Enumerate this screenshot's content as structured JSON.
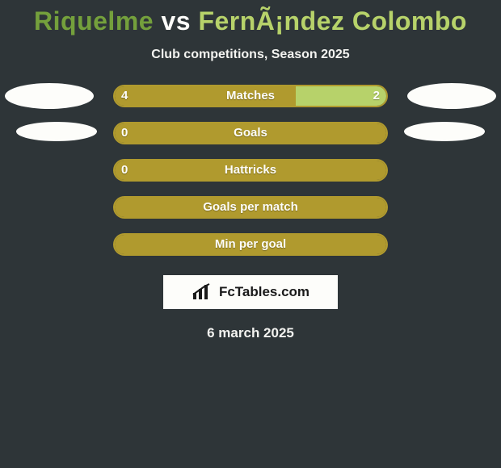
{
  "background_color": "#2e3538",
  "title": {
    "player1": "Riquelme",
    "vs": " vs ",
    "player2": "FernÃ¡ndez Colombo",
    "color1": "#74a03c",
    "color_vs": "#fdfdfa",
    "color2": "#b7d26a",
    "fontsize": 32
  },
  "subtitle": "Club competitions, Season 2025",
  "bars": {
    "border_color": "#b09a2e",
    "color_left": "#b09a2e",
    "color_right": "#b7d26a",
    "track_width": 340,
    "track_height": 28,
    "border_radius": 14
  },
  "rows": [
    {
      "label": "Matches",
      "left_val": "4",
      "right_val": "2",
      "left_pct": 66.7,
      "right_pct": 33.3,
      "show_left_ellipse": "big",
      "show_right_ellipse": "big"
    },
    {
      "label": "Goals",
      "left_val": "0",
      "right_val": "",
      "left_pct": 100,
      "right_pct": 0,
      "show_left_ellipse": "sm",
      "show_right_ellipse": "sm"
    },
    {
      "label": "Hattricks",
      "left_val": "0",
      "right_val": "",
      "left_pct": 100,
      "right_pct": 0,
      "show_left_ellipse": "none",
      "show_right_ellipse": "none"
    },
    {
      "label": "Goals per match",
      "left_val": "",
      "right_val": "",
      "left_pct": 100,
      "right_pct": 0,
      "show_left_ellipse": "none",
      "show_right_ellipse": "none"
    },
    {
      "label": "Min per goal",
      "left_val": "",
      "right_val": "",
      "left_pct": 100,
      "right_pct": 0,
      "show_left_ellipse": "none",
      "show_right_ellipse": "none"
    }
  ],
  "brand": "FcTables.com",
  "footer_date": "6 march 2025"
}
